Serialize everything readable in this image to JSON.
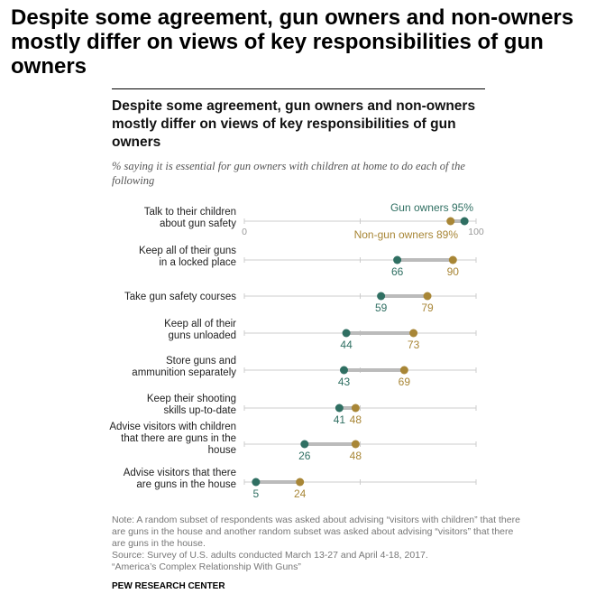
{
  "page_title": "Despite some agreement, gun owners and non-owners mostly differ on views of key responsibilities of gun owners",
  "chart_data": {
    "type": "dot",
    "title": "Despite some agreement, gun owners and non-owners mostly differ on views of key responsibilities of gun owners",
    "subtitle": "% saying it is essential for gun owners with children at home to do each of the following",
    "xlim": [
      0,
      100
    ],
    "tick_labels": [
      "0",
      "100"
    ],
    "legend": {
      "gun_owners": "Gun owners 95%",
      "non_gun_owners": "Non-gun owners 89%"
    },
    "categories": [
      [
        "Talk to their children",
        "about gun safety"
      ],
      [
        "Keep all of their guns",
        "in a locked place"
      ],
      [
        "Take gun safety courses"
      ],
      [
        "Keep all of their",
        "guns unloaded"
      ],
      [
        "Store guns and",
        "ammunition separately"
      ],
      [
        "Keep their shooting",
        "skills up-to-date"
      ],
      [
        "Advise visitors with children",
        "that there are guns in the",
        "house"
      ],
      [
        "Advise visitors that there",
        "are guns in the house"
      ]
    ],
    "series": [
      {
        "name": "Gun owners",
        "color": "#2f6f62",
        "values": [
          95,
          66,
          59,
          44,
          43,
          41,
          26,
          5
        ]
      },
      {
        "name": "Non-gun owners",
        "color": "#a88636",
        "values": [
          89,
          90,
          79,
          73,
          69,
          48,
          48,
          24
        ]
      }
    ]
  },
  "note": "Note: A random subset of respondents was asked about advising “visitors with children” that there are guns in the house and another random subset was asked about advising “visitors” that there are guns in the house.",
  "source": "Source: Survey of U.S. adults conducted March 13-27 and April 4-18, 2017.",
  "report": "“America’s Complex Relationship With Guns”",
  "brand": "PEW RESEARCH CENTER"
}
